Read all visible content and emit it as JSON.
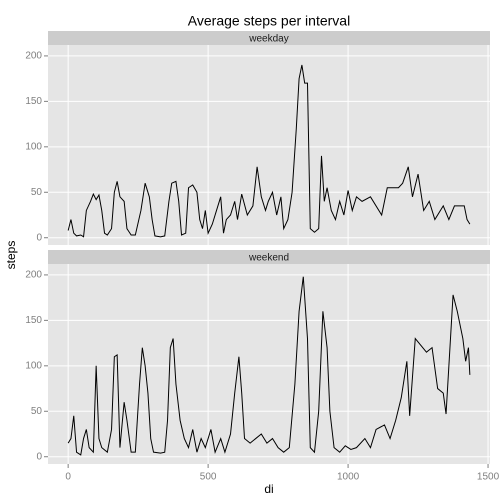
{
  "chart_data": {
    "type": "line",
    "title": "Average steps per interval",
    "x_label": "di",
    "y_label": "steps",
    "color": "#000000",
    "grid": true,
    "xlim": [
      -72,
      1507
    ],
    "xticks": [
      0,
      500,
      1000,
      1500
    ],
    "ylim": [
      -8,
      212
    ],
    "yticks": [
      0,
      50,
      100,
      150,
      200
    ],
    "panels": [
      {
        "name": "weekday",
        "x": [
          0,
          10,
          20,
          30,
          45,
          55,
          65,
          80,
          90,
          100,
          110,
          120,
          130,
          140,
          155,
          165,
          175,
          185,
          200,
          210,
          225,
          240,
          260,
          275,
          290,
          300,
          310,
          330,
          345,
          360,
          370,
          385,
          395,
          405,
          420,
          430,
          445,
          460,
          470,
          480,
          490,
          500,
          515,
          530,
          545,
          555,
          565,
          580,
          595,
          605,
          620,
          640,
          660,
          675,
          690,
          705,
          715,
          730,
          745,
          760,
          770,
          785,
          800,
          815,
          825,
          835,
          845,
          855,
          865,
          880,
          895,
          905,
          915,
          925,
          940,
          955,
          970,
          985,
          1000,
          1015,
          1030,
          1050,
          1080,
          1120,
          1140,
          1180,
          1195,
          1215,
          1230,
          1250,
          1270,
          1290,
          1310,
          1340,
          1360,
          1380,
          1415,
          1425,
          1435
        ],
        "values": [
          8,
          20,
          5,
          2,
          3,
          1,
          30,
          40,
          48,
          42,
          47,
          30,
          5,
          3,
          10,
          50,
          62,
          45,
          40,
          10,
          3,
          3,
          30,
          60,
          45,
          20,
          2,
          1,
          2,
          40,
          60,
          62,
          40,
          3,
          5,
          55,
          58,
          50,
          20,
          10,
          30,
          5,
          15,
          30,
          45,
          5,
          20,
          25,
          40,
          20,
          48,
          25,
          35,
          78,
          45,
          30,
          40,
          50,
          25,
          45,
          10,
          20,
          50,
          120,
          175,
          190,
          170,
          170,
          10,
          6,
          10,
          90,
          40,
          55,
          30,
          20,
          40,
          25,
          52,
          30,
          45,
          40,
          45,
          25,
          55,
          55,
          60,
          78,
          45,
          70,
          30,
          40,
          20,
          35,
          20,
          35,
          35,
          20,
          15
        ]
      },
      {
        "name": "weekend",
        "x": [
          0,
          10,
          20,
          30,
          45,
          55,
          65,
          75,
          90,
          100,
          110,
          120,
          140,
          155,
          165,
          175,
          185,
          200,
          210,
          225,
          240,
          255,
          265,
          275,
          285,
          295,
          305,
          330,
          345,
          355,
          365,
          375,
          385,
          400,
          415,
          430,
          445,
          460,
          475,
          490,
          510,
          525,
          545,
          560,
          580,
          595,
          610,
          620,
          630,
          650,
          670,
          690,
          710,
          730,
          750,
          770,
          790,
          810,
          825,
          840,
          855,
          865,
          880,
          895,
          910,
          925,
          935,
          950,
          970,
          990,
          1010,
          1030,
          1060,
          1080,
          1100,
          1130,
          1150,
          1170,
          1190,
          1210,
          1220,
          1240,
          1280,
          1300,
          1320,
          1340,
          1350,
          1375,
          1390,
          1410,
          1420,
          1430,
          1435
        ],
        "values": [
          15,
          20,
          45,
          5,
          2,
          20,
          30,
          10,
          5,
          100,
          20,
          10,
          5,
          30,
          110,
          112,
          10,
          60,
          40,
          5,
          5,
          80,
          120,
          100,
          70,
          20,
          5,
          4,
          5,
          40,
          120,
          130,
          80,
          40,
          20,
          10,
          30,
          5,
          20,
          10,
          30,
          5,
          20,
          5,
          25,
          70,
          110,
          70,
          20,
          15,
          20,
          25,
          15,
          20,
          10,
          5,
          10,
          80,
          160,
          198,
          130,
          10,
          5,
          50,
          160,
          120,
          50,
          10,
          5,
          12,
          8,
          10,
          20,
          10,
          30,
          35,
          20,
          40,
          65,
          105,
          45,
          130,
          115,
          120,
          75,
          70,
          47,
          178,
          160,
          130,
          105,
          120,
          90
        ]
      }
    ]
  }
}
